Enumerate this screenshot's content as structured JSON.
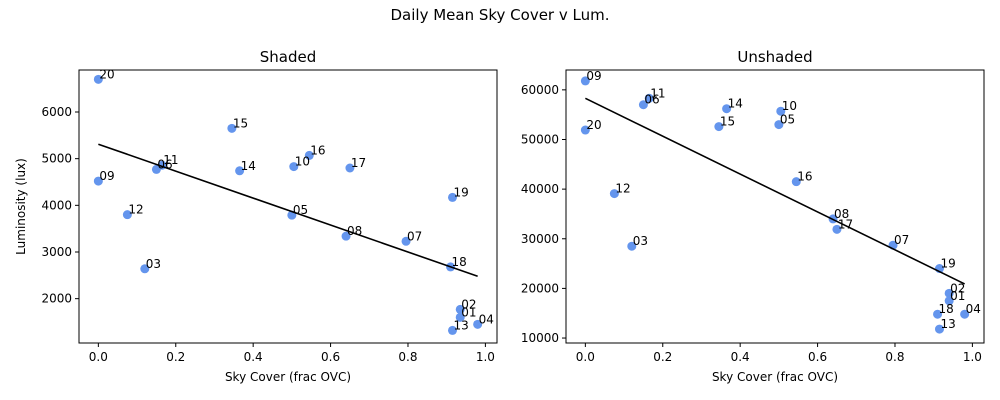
{
  "figure": {
    "suptitle": "Daily Mean Sky Cover v Lum."
  },
  "colors": {
    "point": "#6495ed",
    "fit_line": "#000000",
    "axes": "#000000"
  },
  "chart_data": [
    {
      "type": "scatter",
      "title": "Shaded",
      "xlabel": "Sky Cover (frac OVC)",
      "ylabel": "Luminosity (lux)",
      "xlim": [
        -0.05,
        1.03
      ],
      "ylim": [
        1050,
        6900
      ],
      "xticks": [
        0.0,
        0.2,
        0.4,
        0.6,
        0.8,
        1.0
      ],
      "xtick_labels": [
        "0.0",
        "0.2",
        "0.4",
        "0.6",
        "0.8",
        "1.0"
      ],
      "yticks": [
        2000,
        3000,
        4000,
        5000,
        6000
      ],
      "ytick_labels": [
        "2000",
        "3000",
        "4000",
        "5000",
        "6000"
      ],
      "grid": false,
      "points": [
        {
          "label": "20",
          "x": 0.0,
          "y": 6700
        },
        {
          "label": "09",
          "x": 0.0,
          "y": 4520
        },
        {
          "label": "12",
          "x": 0.075,
          "y": 3800
        },
        {
          "label": "03",
          "x": 0.12,
          "y": 2640
        },
        {
          "label": "06",
          "x": 0.15,
          "y": 4770
        },
        {
          "label": "11",
          "x": 0.165,
          "y": 4860
        },
        {
          "label": "15",
          "x": 0.345,
          "y": 5650
        },
        {
          "label": "14",
          "x": 0.365,
          "y": 4740
        },
        {
          "label": "10",
          "x": 0.505,
          "y": 4830
        },
        {
          "label": "05",
          "x": 0.5,
          "y": 3790
        },
        {
          "label": "16",
          "x": 0.545,
          "y": 5070
        },
        {
          "label": "08",
          "x": 0.64,
          "y": 3340
        },
        {
          "label": "17",
          "x": 0.65,
          "y": 4800
        },
        {
          "label": "07",
          "x": 0.795,
          "y": 3230
        },
        {
          "label": "18",
          "x": 0.91,
          "y": 2680
        },
        {
          "label": "19",
          "x": 0.915,
          "y": 4170
        },
        {
          "label": "13",
          "x": 0.915,
          "y": 1320
        },
        {
          "label": "02",
          "x": 0.935,
          "y": 1770
        },
        {
          "label": "01",
          "x": 0.935,
          "y": 1600
        },
        {
          "label": "04",
          "x": 0.98,
          "y": 1450
        }
      ],
      "fit_line": {
        "x": [
          0.0,
          0.98
        ],
        "y": [
          5310,
          2480
        ]
      }
    },
    {
      "type": "scatter",
      "title": "Unshaded",
      "xlabel": "Sky Cover (frac OVC)",
      "ylabel": "",
      "xlim": [
        -0.05,
        1.03
      ],
      "ylim": [
        9000,
        64000
      ],
      "xticks": [
        0.0,
        0.2,
        0.4,
        0.6,
        0.8,
        1.0
      ],
      "xtick_labels": [
        "0.0",
        "0.2",
        "0.4",
        "0.6",
        "0.8",
        "1.0"
      ],
      "yticks": [
        10000,
        20000,
        30000,
        40000,
        50000,
        60000
      ],
      "ytick_labels": [
        "10000",
        "20000",
        "30000",
        "40000",
        "50000",
        "60000"
      ],
      "grid": false,
      "points": [
        {
          "label": "09",
          "x": 0.0,
          "y": 61800
        },
        {
          "label": "20",
          "x": 0.0,
          "y": 51900
        },
        {
          "label": "12",
          "x": 0.075,
          "y": 39100
        },
        {
          "label": "03",
          "x": 0.12,
          "y": 28500
        },
        {
          "label": "06",
          "x": 0.15,
          "y": 57000
        },
        {
          "label": "11",
          "x": 0.165,
          "y": 58300
        },
        {
          "label": "15",
          "x": 0.345,
          "y": 52600
        },
        {
          "label": "14",
          "x": 0.365,
          "y": 56200
        },
        {
          "label": "10",
          "x": 0.505,
          "y": 55700
        },
        {
          "label": "05",
          "x": 0.5,
          "y": 53000
        },
        {
          "label": "16",
          "x": 0.545,
          "y": 41500
        },
        {
          "label": "08",
          "x": 0.64,
          "y": 34000
        },
        {
          "label": "17",
          "x": 0.65,
          "y": 31900
        },
        {
          "label": "07",
          "x": 0.795,
          "y": 28700
        },
        {
          "label": "19",
          "x": 0.915,
          "y": 24000
        },
        {
          "label": "02",
          "x": 0.94,
          "y": 19000
        },
        {
          "label": "01",
          "x": 0.94,
          "y": 17500
        },
        {
          "label": "18",
          "x": 0.91,
          "y": 14800
        },
        {
          "label": "04",
          "x": 0.98,
          "y": 14800
        },
        {
          "label": "13",
          "x": 0.915,
          "y": 11800
        }
      ],
      "fit_line": {
        "x": [
          0.0,
          0.98
        ],
        "y": [
          58300,
          20900
        ]
      }
    }
  ]
}
